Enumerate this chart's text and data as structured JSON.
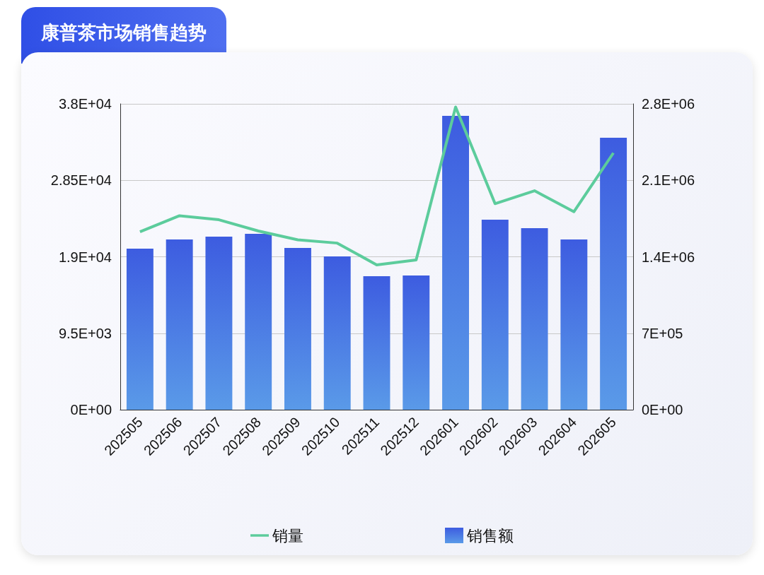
{
  "chart_data": {
    "type": "bar",
    "title": "康普茶市场销售趋势",
    "categories": [
      "202505",
      "202506",
      "202507",
      "202508",
      "202509",
      "202510",
      "202511",
      "202512",
      "202601",
      "202602",
      "202603",
      "202604",
      "202605"
    ],
    "series": [
      {
        "name": "销量",
        "type": "line",
        "color": "#5ccc9c",
        "values": [
          22100,
          24100,
          23600,
          22200,
          21100,
          20700,
          18000,
          18600,
          37600,
          25600,
          27200,
          24600,
          31900
        ]
      },
      {
        "name": "销售额",
        "axis": "y2",
        "color": "#3d5ce0",
        "values": [
          1474000,
          1558000,
          1584000,
          1610000,
          1481000,
          1403000,
          1222000,
          1229000,
          2690000,
          1739000,
          1662000,
          1558000,
          2490000
        ]
      }
    ],
    "ylim": [
      0,
      38000
    ],
    "yticks": [
      {
        "value": 0,
        "label": "0E+00"
      },
      {
        "value": 9500,
        "label": "9.5E+03"
      },
      {
        "value": 19000,
        "label": "1.9E+04"
      },
      {
        "value": 28500,
        "label": "2.85E+04"
      },
      {
        "value": 38000,
        "label": "3.8E+04"
      }
    ],
    "y2lim": [
      0,
      2800000
    ],
    "y2ticks": [
      {
        "value": 0,
        "label": "0E+00"
      },
      {
        "value": 700000,
        "label": "7E+05"
      },
      {
        "value": 1400000,
        "label": "1.4E+06"
      },
      {
        "value": 2100000,
        "label": "2.1E+06"
      },
      {
        "value": 2800000,
        "label": "2.8E+06"
      }
    ],
    "grid": "y",
    "legend": "bottom",
    "marker": "none",
    "line_style": "solid"
  }
}
